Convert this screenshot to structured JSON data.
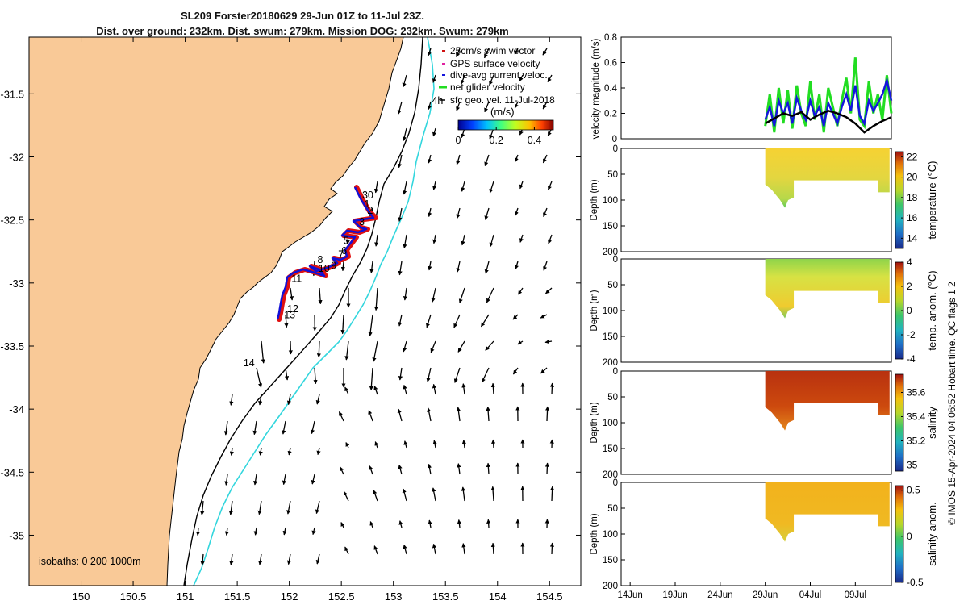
{
  "title": {
    "line1": "SL209 Forster20180629 29-Jun 01Z to 11-Jul 23Z.",
    "line2": "Dist. over ground: 232km. Dist. swum: 279km. Mission DOG: 232km. Swum: 279km"
  },
  "colors": {
    "land": "#f9c997",
    "track_red": "#e01010",
    "track_blue": "#1010d8",
    "cyan_isobath": "#33d6dd",
    "temp_line": "#11aa11",
    "dive_blue": "#1515dd",
    "net_green": "#22dd22"
  },
  "chart_data": [
    {
      "type": "map",
      "name": "glider-track-map",
      "lon_ticks": [
        "150",
        "150.5",
        "151",
        "151.5",
        "152",
        "152.5",
        "153",
        "153.5",
        "154",
        "154.5"
      ],
      "lat_ticks": [
        "-31.5",
        "-32",
        "-32.5",
        "-33",
        "-33.5",
        "-34",
        "-34.5",
        "-35"
      ],
      "lon_range": [
        149.5,
        154.8
      ],
      "lat_range": [
        -35.4,
        -31.05
      ],
      "legend": [
        "25cm/s swim vector",
        "GPS surface velocity",
        "dive-avg current veloc.",
        "net glider velocity",
        "sfc geo. vel. 11-Jul-2018"
      ],
      "colorbar": {
        "label": "(m/s)",
        "ticks": [
          "0",
          "0.2",
          "0.4"
        ],
        "range": [
          0,
          0.5
        ]
      },
      "track_day_labels": [
        {
          "text": "30",
          "lon": 152.7,
          "lat": -32.33
        },
        {
          "text": "1",
          "lon": 152.72,
          "lat": -32.4
        },
        {
          "text": "2",
          "lon": 152.75,
          "lat": -32.45
        },
        {
          "text": "3",
          "lon": 152.67,
          "lat": -32.54
        },
        {
          "text": "5",
          "lon": 152.52,
          "lat": -32.69
        },
        {
          "text": "6",
          "lon": 152.5,
          "lat": -32.77
        },
        {
          "text": "7",
          "lon": 152.47,
          "lat": -32.8
        },
        {
          "text": "8",
          "lon": 152.27,
          "lat": -32.84
        },
        {
          "text": "10",
          "lon": 152.28,
          "lat": -32.91
        },
        {
          "text": "9",
          "lon": 152.4,
          "lat": -32.89
        },
        {
          "text": "11",
          "lon": 152.02,
          "lat": -32.99
        },
        {
          "text": "12",
          "lon": 151.98,
          "lat": -33.23
        },
        {
          "text": "13",
          "lon": 151.95,
          "lat": -33.28
        },
        {
          "text": "14",
          "lon": 151.56,
          "lat": -33.66
        },
        {
          "text": "4h",
          "lon": 153.37,
          "lat": -31.58
        }
      ],
      "isobaths_label": "isobaths: 0   200  1000m"
    },
    {
      "type": "line",
      "name": "velocity-magnitude",
      "ylabel": "velocity magnitude (m/s)",
      "ylim": [
        0,
        0.8
      ],
      "yticks": [
        "0",
        "0.2",
        "0.4",
        "0.6",
        "0.8"
      ],
      "x_day_range": [
        0,
        30
      ],
      "series": [
        {
          "name": "net glider velocity",
          "color": "#22dd22",
          "x": [
            16.0,
            16.5,
            17.0,
            17.5,
            18.0,
            18.5,
            19.0,
            19.5,
            20.0,
            20.5,
            21.0,
            21.5,
            22.0,
            22.5,
            23.0,
            23.5,
            24.0,
            24.5,
            25.0,
            25.5,
            26.0,
            26.5,
            27.0,
            27.5,
            28.0,
            28.5,
            29.0,
            29.5,
            30.0
          ],
          "y": [
            0.1,
            0.35,
            0.05,
            0.4,
            0.12,
            0.38,
            0.08,
            0.42,
            0.2,
            0.1,
            0.45,
            0.15,
            0.35,
            0.05,
            0.4,
            0.25,
            0.1,
            0.3,
            0.48,
            0.2,
            0.64,
            0.15,
            0.1,
            0.45,
            0.2,
            0.35,
            0.15,
            0.5,
            0.2
          ]
        },
        {
          "name": "dive-avg current veloc.",
          "color": "#1515dd",
          "x": [
            16.0,
            16.5,
            17.0,
            17.5,
            18.0,
            18.5,
            19.0,
            19.5,
            20.0,
            20.5,
            21.0,
            21.5,
            22.0,
            22.5,
            23.0,
            23.5,
            24.0,
            24.5,
            25.0,
            25.5,
            26.0,
            26.5,
            27.0,
            27.5,
            28.0,
            28.5,
            29.0,
            29.5,
            30.0
          ],
          "y": [
            0.15,
            0.25,
            0.1,
            0.3,
            0.2,
            0.28,
            0.12,
            0.32,
            0.22,
            0.15,
            0.3,
            0.18,
            0.25,
            0.1,
            0.28,
            0.2,
            0.12,
            0.25,
            0.35,
            0.22,
            0.42,
            0.18,
            0.12,
            0.3,
            0.22,
            0.28,
            0.35,
            0.46,
            0.3
          ]
        },
        {
          "name": "sfc geo. vel.",
          "color": "#000000",
          "x": [
            16.0,
            17.0,
            18.0,
            19.0,
            20.0,
            21.0,
            22.0,
            23.0,
            24.0,
            25.0,
            26.0,
            27.0,
            28.0,
            29.0,
            30.0
          ],
          "y": [
            0.12,
            0.16,
            0.2,
            0.18,
            0.21,
            0.15,
            0.19,
            0.22,
            0.2,
            0.17,
            0.12,
            0.05,
            0.1,
            0.14,
            0.17
          ]
        }
      ]
    },
    {
      "type": "heatmap",
      "name": "temperature",
      "ylabel": "Depth (m)",
      "colorbar_label": "temperature (°C)",
      "yticks": [
        "0",
        "50",
        "100",
        "150",
        "200"
      ],
      "cticks": [
        "14",
        "16",
        "18",
        "20",
        "22"
      ],
      "crange": [
        13,
        22.5
      ],
      "data_x_days": [
        16.0,
        29.8
      ],
      "data_depth_max": 115,
      "data_value_sample": [
        19.5,
        20.0,
        20.5,
        19.8,
        20.2
      ]
    },
    {
      "type": "heatmap",
      "name": "temperature-anomaly",
      "ylabel": "Depth (m)",
      "colorbar_label": "temp. anom. (°C)",
      "yticks": [
        "0",
        "50",
        "100",
        "150",
        "200"
      ],
      "cticks": [
        "-4",
        "-2",
        "0",
        "2",
        "4"
      ],
      "crange": [
        -4,
        4
      ],
      "data_x_days": [
        16.0,
        29.8
      ],
      "data_depth_max": 115,
      "data_value_sample": [
        1.5,
        2.0,
        2.5,
        1.8,
        2.2
      ]
    },
    {
      "type": "heatmap",
      "name": "salinity",
      "ylabel": "Depth (m)",
      "colorbar_label": "salinity",
      "yticks": [
        "0",
        "50",
        "100",
        "150",
        "200"
      ],
      "cticks": [
        "35",
        "35.2",
        "35.4",
        "35.6"
      ],
      "crange": [
        34.95,
        35.75
      ],
      "data_x_days": [
        16.0,
        29.8
      ],
      "data_depth_max": 115,
      "data_value_sample": [
        35.65,
        35.62,
        35.68,
        35.6,
        35.66
      ]
    },
    {
      "type": "heatmap",
      "name": "salinity-anomaly",
      "ylabel": "Depth (m)",
      "colorbar_label": "salinity anom.",
      "yticks": [
        "0",
        "50",
        "100",
        "150",
        "200"
      ],
      "cticks": [
        "-0.5",
        "0",
        "0.5"
      ],
      "crange": [
        -0.5,
        0.55
      ],
      "xticks": [
        "14Jun",
        "19Jun",
        "24Jun",
        "29Jun",
        "04Jul",
        "09Jul"
      ],
      "xtick_days": [
        1,
        6,
        11,
        16,
        21,
        26
      ],
      "data_x_days": [
        16.0,
        29.8
      ],
      "data_depth_max": 115,
      "data_value_sample": [
        0.3,
        0.32,
        0.28,
        0.35,
        0.3
      ]
    }
  ],
  "footer_note": "© IMOS 15-Apr-2024 04:06:52 Hobart time. QC flags 1  2"
}
